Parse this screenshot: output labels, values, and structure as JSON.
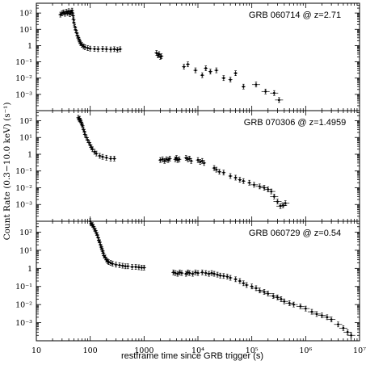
{
  "chart_data": {
    "type": "scatter",
    "xlabel": "restframe time since GRB trigger (s)",
    "ylabel": "Count Rate (0.3−10.0 keV) (s⁻¹)",
    "x_scale": "log",
    "y_scale": "log",
    "xlim": [
      10,
      10000000
    ],
    "x_ticks": [
      "10",
      "100",
      "1000",
      "10⁴",
      "10⁵",
      "10⁶",
      "10⁷"
    ],
    "panels": [
      {
        "label": "GRB 060714 @ z=2.71",
        "ylim": [
          0.0001,
          400
        ],
        "y_ticks": [
          "10²",
          "10¹",
          "1",
          "10⁻¹",
          "10⁻²",
          "10⁻³"
        ],
        "points": [
          [
            28,
            80
          ],
          [
            30,
            95
          ],
          [
            32,
            110
          ],
          [
            34,
            90
          ],
          [
            36,
            120
          ],
          [
            38,
            100
          ],
          [
            40,
            130
          ],
          [
            42,
            85
          ],
          [
            44,
            110
          ],
          [
            46,
            140
          ],
          [
            47,
            100
          ],
          [
            48,
            70
          ],
          [
            49,
            40
          ],
          [
            50,
            25
          ],
          [
            52,
            14
          ],
          [
            54,
            9
          ],
          [
            56,
            6
          ],
          [
            58,
            4
          ],
          [
            60,
            3
          ],
          [
            62,
            2.3
          ],
          [
            64,
            1.8
          ],
          [
            66,
            1.4
          ],
          [
            70,
            1.1
          ],
          [
            75,
            0.9
          ],
          [
            80,
            0.8
          ],
          [
            90,
            0.7
          ],
          [
            100,
            0.65
          ],
          [
            120,
            0.62
          ],
          [
            140,
            0.6
          ],
          [
            170,
            0.62
          ],
          [
            200,
            0.6
          ],
          [
            240,
            0.58
          ],
          [
            280,
            0.6
          ],
          [
            320,
            0.55
          ],
          [
            360,
            0.6
          ],
          [
            1700,
            0.35
          ],
          [
            1800,
            0.25
          ],
          [
            1900,
            0.3
          ],
          [
            2000,
            0.2
          ],
          [
            2100,
            0.22
          ],
          [
            5500,
            0.05
          ],
          [
            6500,
            0.07
          ],
          [
            9000,
            0.03
          ],
          [
            12000,
            0.015
          ],
          [
            14000,
            0.04
          ],
          [
            17000,
            0.025
          ],
          [
            22000,
            0.03
          ],
          [
            30000,
            0.01
          ],
          [
            40000,
            0.008
          ],
          [
            50000,
            0.02
          ],
          [
            70000,
            0.003
          ],
          [
            120000,
            0.004
          ],
          [
            180000,
            0.0015
          ],
          [
            260000,
            0.0012
          ],
          [
            320000,
            0.00045
          ]
        ]
      },
      {
        "label": "GRB 070306 @ z=1.4959",
        "ylim": [
          0.0001,
          400
        ],
        "y_ticks": [
          "10²",
          "10¹",
          "1",
          "10⁻¹",
          "10⁻²",
          "10⁻³"
        ],
        "points": [
          [
            60,
            150
          ],
          [
            62,
            120
          ],
          [
            64,
            130
          ],
          [
            66,
            100
          ],
          [
            68,
            80
          ],
          [
            70,
            60
          ],
          [
            72,
            50
          ],
          [
            75,
            30
          ],
          [
            78,
            22
          ],
          [
            80,
            15
          ],
          [
            85,
            10
          ],
          [
            90,
            7
          ],
          [
            95,
            5
          ],
          [
            100,
            3.5
          ],
          [
            105,
            2.6
          ],
          [
            110,
            2
          ],
          [
            120,
            1.4
          ],
          [
            130,
            1.1
          ],
          [
            150,
            0.8
          ],
          [
            170,
            0.7
          ],
          [
            200,
            0.62
          ],
          [
            240,
            0.55
          ],
          [
            280,
            0.55
          ],
          [
            2000,
            0.45
          ],
          [
            2200,
            0.5
          ],
          [
            2400,
            0.4
          ],
          [
            2600,
            0.5
          ],
          [
            2800,
            0.45
          ],
          [
            3000,
            0.55
          ],
          [
            3800,
            0.5
          ],
          [
            4000,
            0.6
          ],
          [
            4200,
            0.45
          ],
          [
            4500,
            0.5
          ],
          [
            6000,
            0.6
          ],
          [
            6500,
            0.5
          ],
          [
            7000,
            0.55
          ],
          [
            7500,
            0.4
          ],
          [
            10000,
            0.45
          ],
          [
            11000,
            0.35
          ],
          [
            12000,
            0.4
          ],
          [
            13000,
            0.3
          ],
          [
            20000,
            0.15
          ],
          [
            22000,
            0.12
          ],
          [
            25000,
            0.09
          ],
          [
            30000,
            0.08
          ],
          [
            40000,
            0.05
          ],
          [
            50000,
            0.04
          ],
          [
            60000,
            0.03
          ],
          [
            70000,
            0.025
          ],
          [
            90000,
            0.02
          ],
          [
            110000,
            0.015
          ],
          [
            140000,
            0.012
          ],
          [
            170000,
            0.01
          ],
          [
            200000,
            0.008
          ],
          [
            230000,
            0.006
          ],
          [
            260000,
            0.003
          ],
          [
            300000,
            0.0015
          ],
          [
            340000,
            0.0008
          ],
          [
            380000,
            0.0009
          ],
          [
            420000,
            0.0012
          ]
        ]
      },
      {
        "label": "GRB 060729 @ z=0.54",
        "ylim": [
          0.0001,
          400
        ],
        "y_ticks": [
          "10²",
          "10¹",
          "1",
          "10⁻¹",
          "10⁻²",
          "10⁻³"
        ],
        "points": [
          [
            100,
            400
          ],
          [
            105,
            300
          ],
          [
            110,
            250
          ],
          [
            115,
            200
          ],
          [
            120,
            150
          ],
          [
            125,
            120
          ],
          [
            130,
            90
          ],
          [
            135,
            70
          ],
          [
            140,
            50
          ],
          [
            145,
            35
          ],
          [
            150,
            28
          ],
          [
            155,
            20
          ],
          [
            160,
            15
          ],
          [
            165,
            12
          ],
          [
            170,
            9
          ],
          [
            175,
            7
          ],
          [
            180,
            5
          ],
          [
            190,
            4
          ],
          [
            200,
            3
          ],
          [
            210,
            2.5
          ],
          [
            220,
            2.2
          ],
          [
            240,
            2
          ],
          [
            260,
            1.8
          ],
          [
            300,
            1.6
          ],
          [
            350,
            1.5
          ],
          [
            400,
            1.4
          ],
          [
            450,
            1.3
          ],
          [
            500,
            1.3
          ],
          [
            600,
            1.2
          ],
          [
            700,
            1.2
          ],
          [
            800,
            1.15
          ],
          [
            900,
            1.1
          ],
          [
            1000,
            1.1
          ],
          [
            3500,
            0.6
          ],
          [
            3800,
            0.55
          ],
          [
            4200,
            0.5
          ],
          [
            4600,
            0.6
          ],
          [
            5000,
            0.55
          ],
          [
            6000,
            0.5
          ],
          [
            6500,
            0.6
          ],
          [
            7000,
            0.55
          ],
          [
            8000,
            0.5
          ],
          [
            9000,
            0.6
          ],
          [
            10000,
            0.55
          ],
          [
            12000,
            0.6
          ],
          [
            14000,
            0.55
          ],
          [
            16000,
            0.5
          ],
          [
            18000,
            0.55
          ],
          [
            20000,
            0.5
          ],
          [
            23000,
            0.45
          ],
          [
            26000,
            0.4
          ],
          [
            30000,
            0.38
          ],
          [
            35000,
            0.35
          ],
          [
            40000,
            0.3
          ],
          [
            50000,
            0.25
          ],
          [
            60000,
            0.2
          ],
          [
            70000,
            0.15
          ],
          [
            80000,
            0.12
          ],
          [
            100000,
            0.1
          ],
          [
            120000,
            0.08
          ],
          [
            140000,
            0.06
          ],
          [
            170000,
            0.05
          ],
          [
            200000,
            0.04
          ],
          [
            250000,
            0.03
          ],
          [
            300000,
            0.025
          ],
          [
            350000,
            0.02
          ],
          [
            400000,
            0.015
          ],
          [
            500000,
            0.012
          ],
          [
            600000,
            0.01
          ],
          [
            800000,
            0.008
          ],
          [
            1000000,
            0.006
          ],
          [
            1300000,
            0.004
          ],
          [
            1600000,
            0.003
          ],
          [
            2000000,
            0.0025
          ],
          [
            2500000,
            0.002
          ],
          [
            3000000,
            0.0015
          ],
          [
            4000000,
            0.0008
          ],
          [
            5000000,
            0.0005
          ],
          [
            6000000,
            0.0003
          ],
          [
            7000000,
            0.0002
          ]
        ]
      }
    ]
  }
}
